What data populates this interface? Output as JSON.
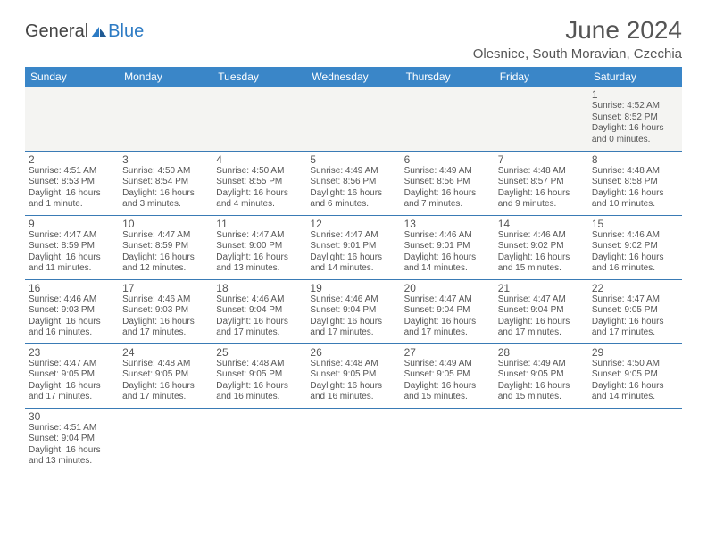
{
  "brand": {
    "part1": "General",
    "part2": "Blue"
  },
  "title": "June 2024",
  "location": "Olesnice, South Moravian, Czechia",
  "colors": {
    "headerBg": "#3a86c8",
    "headerFg": "#ffffff",
    "border": "#3a7bb5",
    "brandBlue": "#2d7bc4"
  },
  "days": [
    "Sunday",
    "Monday",
    "Tuesday",
    "Wednesday",
    "Thursday",
    "Friday",
    "Saturday"
  ],
  "weeks": [
    [
      null,
      null,
      null,
      null,
      null,
      null,
      {
        "n": "1",
        "sr": "Sunrise: 4:52 AM",
        "ss": "Sunset: 8:52 PM",
        "d1": "Daylight: 16 hours",
        "d2": "and 0 minutes."
      }
    ],
    [
      {
        "n": "2",
        "sr": "Sunrise: 4:51 AM",
        "ss": "Sunset: 8:53 PM",
        "d1": "Daylight: 16 hours",
        "d2": "and 1 minute."
      },
      {
        "n": "3",
        "sr": "Sunrise: 4:50 AM",
        "ss": "Sunset: 8:54 PM",
        "d1": "Daylight: 16 hours",
        "d2": "and 3 minutes."
      },
      {
        "n": "4",
        "sr": "Sunrise: 4:50 AM",
        "ss": "Sunset: 8:55 PM",
        "d1": "Daylight: 16 hours",
        "d2": "and 4 minutes."
      },
      {
        "n": "5",
        "sr": "Sunrise: 4:49 AM",
        "ss": "Sunset: 8:56 PM",
        "d1": "Daylight: 16 hours",
        "d2": "and 6 minutes."
      },
      {
        "n": "6",
        "sr": "Sunrise: 4:49 AM",
        "ss": "Sunset: 8:56 PM",
        "d1": "Daylight: 16 hours",
        "d2": "and 7 minutes."
      },
      {
        "n": "7",
        "sr": "Sunrise: 4:48 AM",
        "ss": "Sunset: 8:57 PM",
        "d1": "Daylight: 16 hours",
        "d2": "and 9 minutes."
      },
      {
        "n": "8",
        "sr": "Sunrise: 4:48 AM",
        "ss": "Sunset: 8:58 PM",
        "d1": "Daylight: 16 hours",
        "d2": "and 10 minutes."
      }
    ],
    [
      {
        "n": "9",
        "sr": "Sunrise: 4:47 AM",
        "ss": "Sunset: 8:59 PM",
        "d1": "Daylight: 16 hours",
        "d2": "and 11 minutes."
      },
      {
        "n": "10",
        "sr": "Sunrise: 4:47 AM",
        "ss": "Sunset: 8:59 PM",
        "d1": "Daylight: 16 hours",
        "d2": "and 12 minutes."
      },
      {
        "n": "11",
        "sr": "Sunrise: 4:47 AM",
        "ss": "Sunset: 9:00 PM",
        "d1": "Daylight: 16 hours",
        "d2": "and 13 minutes."
      },
      {
        "n": "12",
        "sr": "Sunrise: 4:47 AM",
        "ss": "Sunset: 9:01 PM",
        "d1": "Daylight: 16 hours",
        "d2": "and 14 minutes."
      },
      {
        "n": "13",
        "sr": "Sunrise: 4:46 AM",
        "ss": "Sunset: 9:01 PM",
        "d1": "Daylight: 16 hours",
        "d2": "and 14 minutes."
      },
      {
        "n": "14",
        "sr": "Sunrise: 4:46 AM",
        "ss": "Sunset: 9:02 PM",
        "d1": "Daylight: 16 hours",
        "d2": "and 15 minutes."
      },
      {
        "n": "15",
        "sr": "Sunrise: 4:46 AM",
        "ss": "Sunset: 9:02 PM",
        "d1": "Daylight: 16 hours",
        "d2": "and 16 minutes."
      }
    ],
    [
      {
        "n": "16",
        "sr": "Sunrise: 4:46 AM",
        "ss": "Sunset: 9:03 PM",
        "d1": "Daylight: 16 hours",
        "d2": "and 16 minutes."
      },
      {
        "n": "17",
        "sr": "Sunrise: 4:46 AM",
        "ss": "Sunset: 9:03 PM",
        "d1": "Daylight: 16 hours",
        "d2": "and 17 minutes."
      },
      {
        "n": "18",
        "sr": "Sunrise: 4:46 AM",
        "ss": "Sunset: 9:04 PM",
        "d1": "Daylight: 16 hours",
        "d2": "and 17 minutes."
      },
      {
        "n": "19",
        "sr": "Sunrise: 4:46 AM",
        "ss": "Sunset: 9:04 PM",
        "d1": "Daylight: 16 hours",
        "d2": "and 17 minutes."
      },
      {
        "n": "20",
        "sr": "Sunrise: 4:47 AM",
        "ss": "Sunset: 9:04 PM",
        "d1": "Daylight: 16 hours",
        "d2": "and 17 minutes."
      },
      {
        "n": "21",
        "sr": "Sunrise: 4:47 AM",
        "ss": "Sunset: 9:04 PM",
        "d1": "Daylight: 16 hours",
        "d2": "and 17 minutes."
      },
      {
        "n": "22",
        "sr": "Sunrise: 4:47 AM",
        "ss": "Sunset: 9:05 PM",
        "d1": "Daylight: 16 hours",
        "d2": "and 17 minutes."
      }
    ],
    [
      {
        "n": "23",
        "sr": "Sunrise: 4:47 AM",
        "ss": "Sunset: 9:05 PM",
        "d1": "Daylight: 16 hours",
        "d2": "and 17 minutes."
      },
      {
        "n": "24",
        "sr": "Sunrise: 4:48 AM",
        "ss": "Sunset: 9:05 PM",
        "d1": "Daylight: 16 hours",
        "d2": "and 17 minutes."
      },
      {
        "n": "25",
        "sr": "Sunrise: 4:48 AM",
        "ss": "Sunset: 9:05 PM",
        "d1": "Daylight: 16 hours",
        "d2": "and 16 minutes."
      },
      {
        "n": "26",
        "sr": "Sunrise: 4:48 AM",
        "ss": "Sunset: 9:05 PM",
        "d1": "Daylight: 16 hours",
        "d2": "and 16 minutes."
      },
      {
        "n": "27",
        "sr": "Sunrise: 4:49 AM",
        "ss": "Sunset: 9:05 PM",
        "d1": "Daylight: 16 hours",
        "d2": "and 15 minutes."
      },
      {
        "n": "28",
        "sr": "Sunrise: 4:49 AM",
        "ss": "Sunset: 9:05 PM",
        "d1": "Daylight: 16 hours",
        "d2": "and 15 minutes."
      },
      {
        "n": "29",
        "sr": "Sunrise: 4:50 AM",
        "ss": "Sunset: 9:05 PM",
        "d1": "Daylight: 16 hours",
        "d2": "and 14 minutes."
      }
    ],
    [
      {
        "n": "30",
        "sr": "Sunrise: 4:51 AM",
        "ss": "Sunset: 9:04 PM",
        "d1": "Daylight: 16 hours",
        "d2": "and 13 minutes."
      },
      null,
      null,
      null,
      null,
      null,
      null
    ]
  ]
}
